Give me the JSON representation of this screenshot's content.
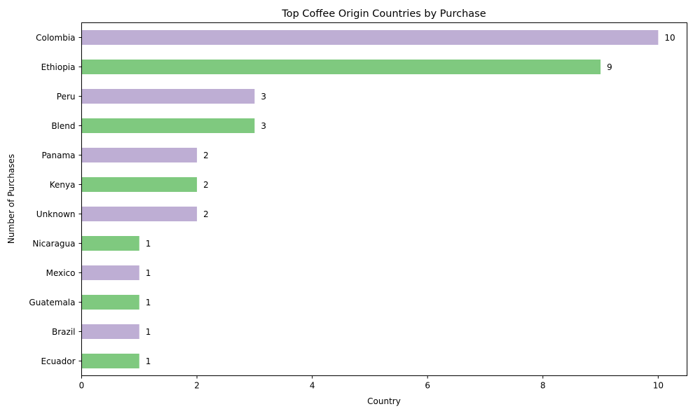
{
  "chart_data": {
    "type": "bar",
    "orientation": "horizontal",
    "title": "Top Coffee Origin Countries by Purchase",
    "xlabel": "Country",
    "ylabel": "Number of Purchases",
    "categories": [
      "Colombia",
      "Ethiopia",
      "Peru",
      "Blend",
      "Panama",
      "Kenya",
      "Unknown",
      "Nicaragua",
      "Mexico",
      "Guatemala",
      "Brazil",
      "Ecuador"
    ],
    "values": [
      10,
      9,
      3,
      3,
      2,
      2,
      2,
      1,
      1,
      1,
      1,
      1
    ],
    "data_labels": [
      "10",
      "9",
      "3",
      "3",
      "2",
      "2",
      "2",
      "1",
      "1",
      "1",
      "1",
      "1"
    ],
    "xlim": [
      0,
      10.5
    ],
    "xticks": [
      0,
      2,
      4,
      6,
      8,
      10
    ],
    "grid": false,
    "legend": "none",
    "colors": [
      "#beaed4",
      "#7fc97f"
    ]
  }
}
